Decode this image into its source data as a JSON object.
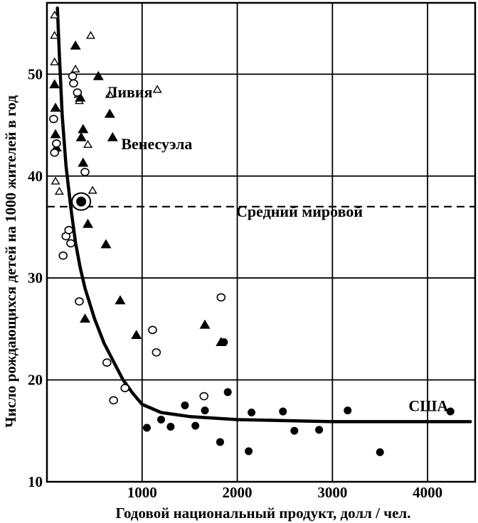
{
  "chart_data": {
    "type": "scatter",
    "title": "",
    "xlabel": "Годовой национальный продукт, долл / чел.",
    "ylabel": "Число рождающихся детей на 1000 жителей в год",
    "xlim": [
      0,
      4500
    ],
    "ylim": [
      10,
      57
    ],
    "x_ticks": [
      1000,
      2000,
      3000,
      4000
    ],
    "y_ticks": [
      10,
      20,
      30,
      40,
      50
    ],
    "grid": true,
    "legend": "none",
    "colors": {
      "ink": "#000000",
      "background": "#ffffff"
    },
    "reference_line": {
      "y": 37,
      "style": "dashed",
      "label": "Средний мировой"
    },
    "annotations": [
      {
        "text": "Ливия",
        "x": 620,
        "y": 48.3
      },
      {
        "text": "Венесуэла",
        "x": 780,
        "y": 43.2
      },
      {
        "text": "США",
        "x": 3800,
        "y": 17.5
      }
    ],
    "trend_curve": [
      [
        110,
        56.5
      ],
      [
        130,
        52
      ],
      [
        160,
        46
      ],
      [
        200,
        41
      ],
      [
        250,
        37
      ],
      [
        300,
        33.5
      ],
      [
        350,
        31
      ],
      [
        400,
        29
      ],
      [
        500,
        26
      ],
      [
        600,
        23.6
      ],
      [
        700,
        21.8
      ],
      [
        800,
        20
      ],
      [
        900,
        18.7
      ],
      [
        1000,
        17.6
      ],
      [
        1200,
        16.8
      ],
      [
        1500,
        16.4
      ],
      [
        2000,
        16.1
      ],
      [
        3000,
        15.9
      ],
      [
        4000,
        15.9
      ],
      [
        4450,
        15.9
      ]
    ],
    "series": [
      {
        "marker": "open-triangle",
        "points": [
          [
            80,
            55.8
          ],
          [
            80,
            53.8
          ],
          [
            80,
            51.2
          ],
          [
            80,
            49
          ],
          [
            90,
            39.5
          ],
          [
            130,
            38.5
          ],
          [
            300,
            50.5
          ],
          [
            330,
            48
          ],
          [
            340,
            47.4
          ],
          [
            430,
            43.1
          ],
          [
            460,
            53.8
          ],
          [
            480,
            38.6
          ],
          [
            660,
            48
          ],
          [
            1160,
            48.5
          ]
        ]
      },
      {
        "marker": "filled-triangle",
        "points": [
          [
            80,
            49
          ],
          [
            90,
            46.7
          ],
          [
            90,
            44.1
          ],
          [
            100,
            42.8
          ],
          [
            300,
            52.8
          ],
          [
            350,
            47.7
          ],
          [
            360,
            43.8
          ],
          [
            380,
            44.6
          ],
          [
            380,
            41.3
          ],
          [
            400,
            26
          ],
          [
            430,
            35.3
          ],
          [
            540,
            49.8
          ],
          [
            620,
            33.3
          ],
          [
            660,
            46.1
          ],
          [
            690,
            43.8
          ],
          [
            770,
            27.8
          ],
          [
            940,
            24.4
          ],
          [
            1660,
            25.4
          ],
          [
            1830,
            23.7
          ]
        ]
      },
      {
        "marker": "open-circle",
        "points": [
          [
            70,
            45.6
          ],
          [
            80,
            42.3
          ],
          [
            100,
            43.2
          ],
          [
            170,
            32.2
          ],
          [
            200,
            34.1
          ],
          [
            230,
            34.7
          ],
          [
            250,
            33.4
          ],
          [
            270,
            49.8
          ],
          [
            280,
            49.1
          ],
          [
            320,
            48.2
          ],
          [
            340,
            27.7
          ],
          [
            400,
            40.4
          ],
          [
            630,
            21.7
          ],
          [
            700,
            18
          ],
          [
            820,
            19.2
          ],
          [
            1110,
            24.9
          ],
          [
            1150,
            22.7
          ],
          [
            1650,
            18.4
          ],
          [
            1830,
            28.1
          ]
        ]
      },
      {
        "marker": "filled-circle",
        "points": [
          [
            1050,
            15.3
          ],
          [
            1200,
            16.1
          ],
          [
            1300,
            15.4
          ],
          [
            1450,
            17.5
          ],
          [
            1560,
            15.5
          ],
          [
            1660,
            17
          ],
          [
            1820,
            13.9
          ],
          [
            1860,
            23.7
          ],
          [
            1900,
            18.8
          ],
          [
            2120,
            13
          ],
          [
            2150,
            16.8
          ],
          [
            2480,
            16.9
          ],
          [
            2600,
            15
          ],
          [
            2860,
            15.1
          ],
          [
            3160,
            17
          ],
          [
            3500,
            12.9
          ],
          [
            4240,
            16.9
          ]
        ]
      },
      {
        "marker": "ringed-circle",
        "points": [
          [
            360,
            37.5
          ]
        ]
      }
    ]
  }
}
